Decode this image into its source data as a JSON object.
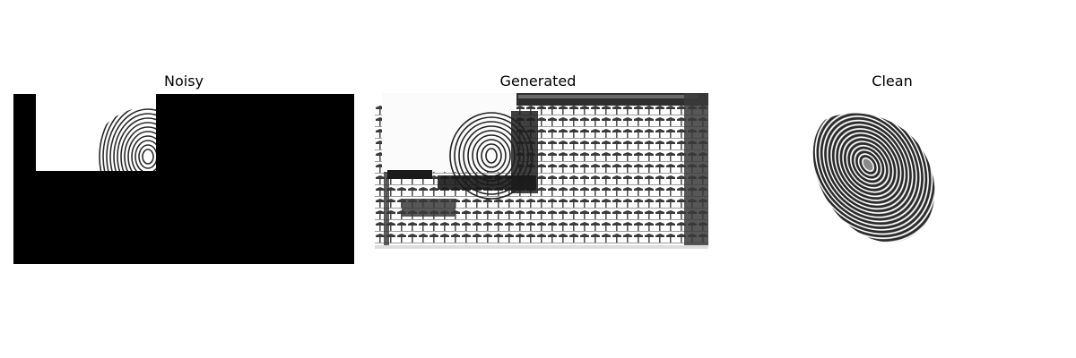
{
  "panels": [
    {
      "title": "Noisy"
    },
    {
      "title": "Generated"
    },
    {
      "title": "Clean"
    }
  ],
  "colors": {
    "background": "#ffffff",
    "mask": "#000000",
    "ink": "#1a1a1a"
  }
}
